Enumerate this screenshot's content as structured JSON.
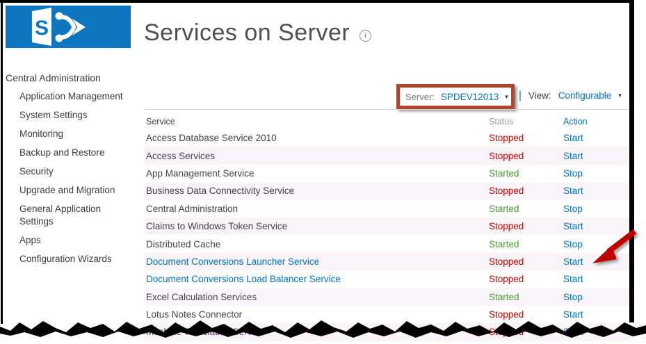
{
  "logo": {
    "letter": "S"
  },
  "sidebar": {
    "root": "Central Administration",
    "items": [
      "Application Management",
      "System Settings",
      "Monitoring",
      "Backup and Restore",
      "Security",
      "Upgrade and Migration",
      "General Application Settings",
      "Apps",
      "Configuration Wizards"
    ]
  },
  "header": {
    "title": "Services on Server",
    "info_glyph": "i"
  },
  "toolbar": {
    "server_label": "Server:",
    "server_value": "SPDEV12013",
    "separator": "|",
    "view_label": "View:",
    "view_value": "Configurable",
    "caret": "▾"
  },
  "table": {
    "columns": [
      "Service",
      "Status",
      "Action"
    ],
    "rows": [
      {
        "service": "Access Database Service 2010",
        "link": false,
        "status": "Stopped",
        "action": "Start"
      },
      {
        "service": "Access Services",
        "link": false,
        "status": "Stopped",
        "action": "Start"
      },
      {
        "service": "App Management Service",
        "link": false,
        "status": "Started",
        "action": "Stop"
      },
      {
        "service": "Business Data Connectivity Service",
        "link": false,
        "status": "Stopped",
        "action": "Start"
      },
      {
        "service": "Central Administration",
        "link": false,
        "status": "Started",
        "action": "Stop"
      },
      {
        "service": "Claims to Windows Token Service",
        "link": false,
        "status": "Stopped",
        "action": "Start"
      },
      {
        "service": "Distributed Cache",
        "link": false,
        "status": "Started",
        "action": "Stop"
      },
      {
        "service": "Document Conversions Launcher Service",
        "link": true,
        "status": "Stopped",
        "action": "Start",
        "annotated": true
      },
      {
        "service": "Document Conversions Load Balancer Service",
        "link": true,
        "status": "Stopped",
        "action": "Start"
      },
      {
        "service": "Excel Calculation Services",
        "link": false,
        "status": "Started",
        "action": "Stop"
      },
      {
        "service": "Lotus Notes Connector",
        "link": false,
        "status": "Stopped",
        "action": "Start"
      },
      {
        "service": "Machine Translation Service",
        "link": false,
        "status": "Stopped",
        "action": "Start"
      }
    ]
  },
  "colors": {
    "logo_blue": "#0e76c0",
    "link_blue": "#0072c6",
    "stopped_red": "#c80000",
    "started_green": "#489b2e",
    "highlight_box_red": "#b2452e",
    "arrow_red": "#c00000"
  }
}
